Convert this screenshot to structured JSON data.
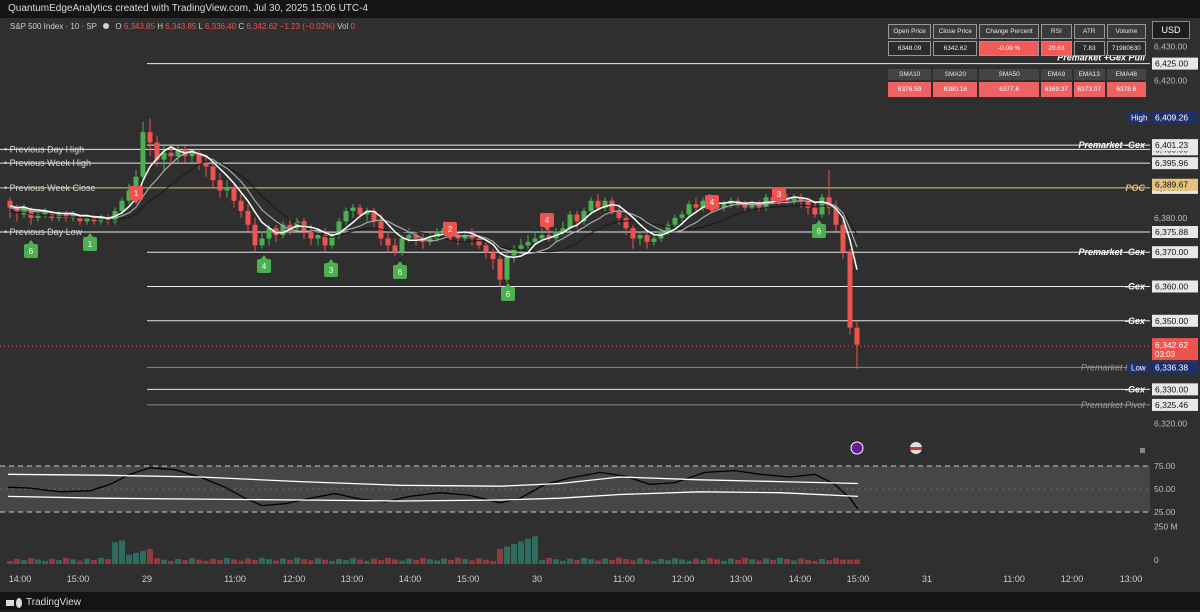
{
  "header": {
    "title": "QuantumEdgeAnalytics created with TradingView.com, Jul 30, 2025 15:06 UTC-4"
  },
  "legend": {
    "symbol": "S&P 500 Index · 10 · SP",
    "o_label": "O",
    "o_value": "6,343.85",
    "h_label": "H",
    "h_value": "6,343.85",
    "l_label": "L",
    "l_value": "6,336.40",
    "c_label": "C",
    "c_value": "6,342.62",
    "change": "−1.23 (−0.02%)",
    "vol_label": "Vol",
    "vol_value": "0"
  },
  "currency": "USD",
  "stats_table": {
    "headers1": [
      "Open Price",
      "Close Price",
      "Change Percent",
      "RSI",
      "ATR",
      "Volume"
    ],
    "values1": [
      "6348.09",
      "6342.62",
      "-0.09 %",
      "20.63",
      "7.83",
      "71980630"
    ],
    "headers2": [
      "SMA10",
      "SMA20",
      "SMA50",
      "EMA9",
      "EMA13",
      "EMA48"
    ],
    "values2": [
      "6376.59",
      "6380.16",
      "6377.6",
      "6369.37",
      "6373.07",
      "6378.6"
    ]
  },
  "levels": [
    {
      "left_label": "Previous Day High",
      "right_label": "",
      "price": 6400.0,
      "axis": "6,400.00"
    },
    {
      "left_label": "Previous Week High",
      "right_label": "",
      "price": 6395.96,
      "axis": "6,395.96"
    },
    {
      "left_label": "Previous Week Close",
      "right_label": "POC",
      "price": 6388.76,
      "axis": "6,388.76"
    },
    {
      "left_label": "Previous Day Low",
      "right_label": "",
      "price": 6375.88,
      "axis": "6,375.88"
    },
    {
      "left_label": "",
      "right_label": "Premarket +Gex Pull",
      "price": 6425.0,
      "axis": "6,425.00"
    },
    {
      "left_label": "",
      "right_label": "Premarket -Gex",
      "price": 6401.23,
      "axis": "6,401.23"
    },
    {
      "left_label": "",
      "right_label": "Premarket -Gex",
      "price": 6370.0,
      "axis": "6,370.00"
    },
    {
      "left_label": "",
      "right_label": "-Gex",
      "price": 6360.0,
      "axis": "6,360.00"
    },
    {
      "left_label": "",
      "right_label": "-Gex",
      "price": 6350.0,
      "axis": "6,350.00"
    },
    {
      "left_label": "",
      "right_label": "Premarket Pivot",
      "price": 6336.4,
      "axis": "6,336.40"
    },
    {
      "left_label": "",
      "right_label": "-Gex",
      "price": 6330.0,
      "axis": "6,330.00"
    },
    {
      "left_label": "",
      "right_label": "Premarket Pivot",
      "price": 6325.46,
      "axis": "6,325.46"
    }
  ],
  "axis_ticks": [
    "6,430.00",
    "6,420.00",
    "6,380.00",
    "6,320.00"
  ],
  "high_label": "High",
  "high_value": "6,409.26",
  "low_label": "Low",
  "low_value": "6,336.38",
  "poc_value": "6,389.67",
  "last_price": "6,342.62",
  "countdown": "03:03",
  "rsi_axis": [
    "75.00",
    "50.00",
    "25.00"
  ],
  "vol_axis": [
    "250 M",
    "0"
  ],
  "time_axis": [
    "14:00",
    "15:00",
    "29",
    "11:00",
    "12:00",
    "13:00",
    "14:00",
    "15:00",
    "30",
    "11:00",
    "12:00",
    "13:00",
    "14:00",
    "15:00",
    "31",
    "11:00",
    "12:00",
    "13:00"
  ],
  "markers_red": [
    "1",
    "2",
    "4",
    "4",
    "3"
  ],
  "markers_green": [
    "6",
    "1",
    "4",
    "3",
    "6",
    "6",
    "6"
  ],
  "footer": {
    "brand": "TradingView"
  },
  "colors": {
    "up": "#4caf50",
    "down": "#ef5350",
    "bg": "#2f2f2f",
    "poc": "#e6c27a"
  }
}
